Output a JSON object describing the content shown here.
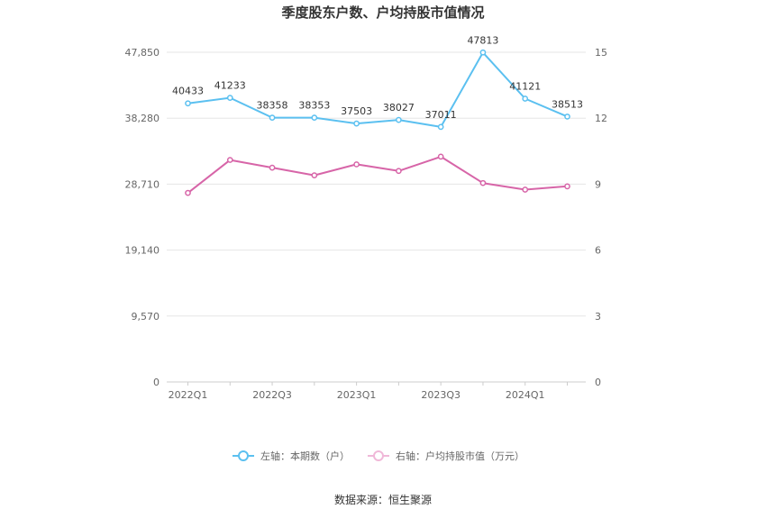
{
  "chart_data": {
    "type": "line",
    "title": "季度股东户数、户均持股市值情况",
    "categories": [
      "2022Q1",
      "2022Q2",
      "2022Q3",
      "2022Q4",
      "2023Q1",
      "2023Q2",
      "2023Q3",
      "2023Q4",
      "2024Q1",
      "2024Q2"
    ],
    "x_tick_labels": [
      "2022Q1",
      "2022Q3",
      "2023Q1",
      "2023Q3",
      "2024Q1"
    ],
    "left_axis": {
      "ticks": [
        "0",
        "9,570",
        "19,140",
        "28,710",
        "38,280",
        "47,850"
      ],
      "ylim": [
        0,
        47850
      ]
    },
    "right_axis": {
      "ticks": [
        "0",
        "3",
        "6",
        "9",
        "12",
        "15"
      ],
      "ylim": [
        0,
        15
      ]
    },
    "grid": true,
    "legend_position": "bottom",
    "series": [
      {
        "name": "左轴：本期数（户）",
        "axis": "left",
        "color": "#5bc0f0",
        "values": [
          40433,
          41233,
          38358,
          38353,
          37503,
          38027,
          37011,
          47813,
          41121,
          38513
        ],
        "labels": [
          "40433",
          "41233",
          "38358",
          "38353",
          "37503",
          "38027",
          "37011",
          "47813",
          "41121",
          "38513"
        ]
      },
      {
        "name": "右轴：户均持股市值（万元）",
        "axis": "right",
        "color": "#d765a8",
        "values": [
          8.6,
          10.1,
          9.75,
          9.4,
          9.9,
          9.6,
          10.25,
          9.05,
          8.75,
          8.9
        ]
      }
    ]
  },
  "source": "数据来源：恒生聚源"
}
